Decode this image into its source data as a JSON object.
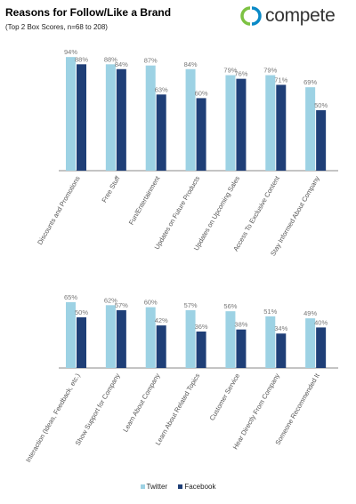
{
  "header": {
    "title": "Reasons for Follow/Like a Brand",
    "subtitle": "(Top 2 Box Scores, n=68 to 208)",
    "brand": "compete"
  },
  "colors": {
    "twitter": "#9dd2e4",
    "facebook": "#1f3f77",
    "brand_green": "#7dc243",
    "brand_blue": "#0a8ac7"
  },
  "chart_data": [
    {
      "type": "bar",
      "categories": [
        "Discounts and Promotions",
        "Free Stuff",
        "Fun/Entertainment",
        "Updates on Future Products",
        "Updates on Upcoming Sales",
        "Access To Exclusive Content",
        "Stay Informed About Company"
      ],
      "series": [
        {
          "name": "Twitter",
          "values": [
            94,
            88,
            87,
            84,
            79,
            79,
            69
          ],
          "labels": [
            "94%",
            "88%",
            "87%",
            "84%",
            "79%",
            "79%",
            "69%"
          ]
        },
        {
          "name": "Facebook",
          "values": [
            88,
            84,
            63,
            60,
            76,
            71,
            50
          ],
          "labels": [
            "88%",
            "84%",
            "63%",
            "60%",
            "76%",
            "71%",
            "50%"
          ]
        }
      ],
      "ylim": [
        0,
        100
      ],
      "grid": false
    },
    {
      "type": "bar",
      "categories": [
        "Interaction (Ideas, Feedback, etc.)",
        "Show Support for Company",
        "Learn About Company",
        "Learn About Related Topics",
        "Customer Service",
        "Hear Directly From Company",
        "Someone Recommended It"
      ],
      "series": [
        {
          "name": "Twitter",
          "values": [
            65,
            62,
            60,
            57,
            56,
            51,
            49
          ],
          "labels": [
            "65%",
            "62%",
            "60%",
            "57%",
            "56%",
            "51%",
            "49%"
          ]
        },
        {
          "name": "Facebook",
          "values": [
            50,
            57,
            42,
            36,
            38,
            34,
            40
          ],
          "labels": [
            "50%",
            "57%",
            "42%",
            "36%",
            "38%",
            "34%",
            "40%"
          ]
        }
      ],
      "ylim": [
        0,
        100
      ],
      "grid": false
    }
  ],
  "legend": {
    "items": [
      "Twitter",
      "Facebook"
    ],
    "position": "bottom"
  }
}
